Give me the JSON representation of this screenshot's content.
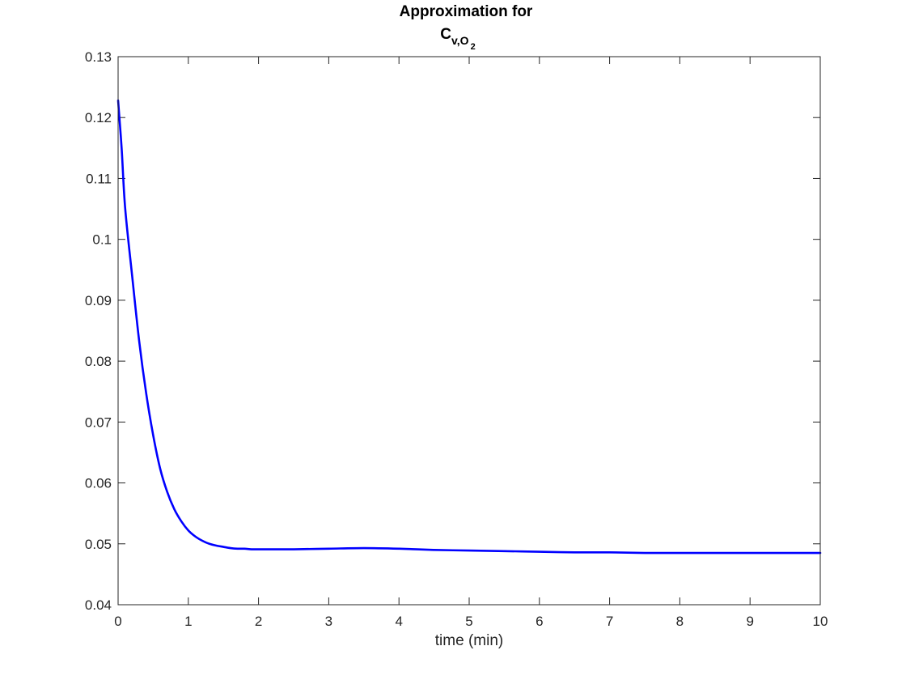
{
  "chart_data": {
    "type": "line",
    "title": "Approximation for",
    "title_math": {
      "base": "C",
      "subscript": "v,O",
      "sub_subscript": "2"
    },
    "xlabel": "time (min)",
    "ylabel": "",
    "xlim": [
      0,
      10
    ],
    "ylim": [
      0.04,
      0.13
    ],
    "x_ticks": [
      "0",
      "1",
      "2",
      "3",
      "4",
      "5",
      "6",
      "7",
      "8",
      "9",
      "10"
    ],
    "y_ticks": [
      "0.04",
      "0.05",
      "0.06",
      "0.07",
      "0.08",
      "0.09",
      "0.1",
      "0.11",
      "0.12",
      "0.13"
    ],
    "grid": false,
    "box": true,
    "series": [
      {
        "color": "#0000ff",
        "x": [
          0,
          0.05,
          0.1,
          0.2,
          0.3,
          0.4,
          0.5,
          0.6,
          0.7,
          0.8,
          0.9,
          1.0,
          1.1,
          1.2,
          1.3,
          1.4,
          1.5,
          1.6,
          1.7,
          1.8,
          1.9,
          2.0,
          2.2,
          2.5,
          3.0,
          3.5,
          4.0,
          4.5,
          5.0,
          5.5,
          6.0,
          6.5,
          7.0,
          7.5,
          8.0,
          8.5,
          9.0,
          9.5,
          10.0
        ],
        "y": [
          0.1228,
          0.115,
          0.1052,
          0.094,
          0.0833,
          0.0747,
          0.0678,
          0.0623,
          0.0585,
          0.0557,
          0.0537,
          0.0522,
          0.0512,
          0.0505,
          0.05,
          0.0497,
          0.0495,
          0.0493,
          0.0492,
          0.0492,
          0.0491,
          0.0491,
          0.0491,
          0.0491,
          0.0492,
          0.0493,
          0.0492,
          0.049,
          0.0489,
          0.0488,
          0.0487,
          0.0486,
          0.0486,
          0.0485,
          0.0485,
          0.0485,
          0.0485,
          0.0485,
          0.0485
        ]
      }
    ]
  }
}
